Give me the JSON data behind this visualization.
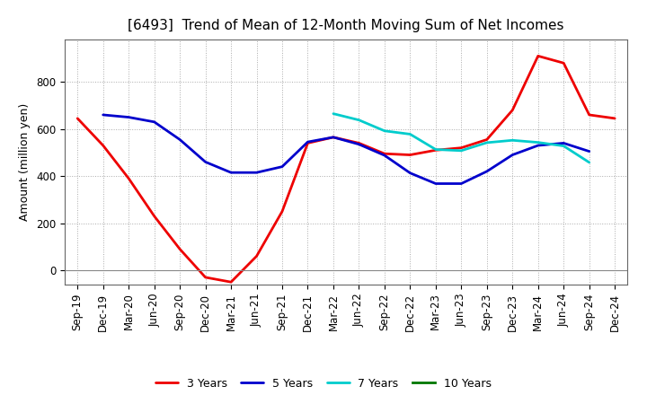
{
  "title": "[6493]  Trend of Mean of 12-Month Moving Sum of Net Incomes",
  "ylabel": "Amount (million yen)",
  "xlabels": [
    "Sep-19",
    "Dec-19",
    "Mar-20",
    "Jun-20",
    "Sep-20",
    "Dec-20",
    "Mar-21",
    "Jun-21",
    "Sep-21",
    "Dec-21",
    "Mar-22",
    "Jun-22",
    "Sep-22",
    "Dec-22",
    "Mar-23",
    "Jun-23",
    "Sep-23",
    "Dec-23",
    "Mar-24",
    "Jun-24",
    "Sep-24",
    "Dec-24"
  ],
  "ylim": [
    -60,
    980
  ],
  "yticks": [
    0,
    200,
    400,
    600,
    800
  ],
  "series": {
    "3 Years": {
      "color": "#EE0000",
      "linewidth": 2.0,
      "values": [
        645,
        530,
        390,
        230,
        90,
        -30,
        -50,
        60,
        250,
        540,
        565,
        540,
        495,
        490,
        510,
        520,
        555,
        680,
        910,
        880,
        660,
        645
      ]
    },
    "5 Years": {
      "color": "#0000CC",
      "linewidth": 2.0,
      "values": [
        null,
        660,
        650,
        630,
        555,
        460,
        415,
        415,
        440,
        545,
        565,
        535,
        488,
        413,
        368,
        368,
        420,
        490,
        530,
        540,
        505,
        null
      ]
    },
    "7 Years": {
      "color": "#00CCCC",
      "linewidth": 2.0,
      "values": [
        null,
        null,
        null,
        null,
        null,
        null,
        null,
        null,
        null,
        null,
        665,
        638,
        592,
        578,
        513,
        508,
        542,
        552,
        543,
        528,
        458,
        null
      ]
    },
    "10 Years": {
      "color": "#007700",
      "linewidth": 2.0,
      "values": [
        null,
        null,
        null,
        null,
        null,
        null,
        null,
        null,
        null,
        null,
        null,
        null,
        null,
        null,
        null,
        null,
        null,
        null,
        null,
        null,
        null,
        null
      ]
    }
  },
  "background_color": "#FFFFFF",
  "plot_bg_color": "#FFFFFF",
  "grid_color": "#AAAAAA",
  "title_fontsize": 11,
  "axis_label_fontsize": 9,
  "tick_fontsize": 8.5,
  "legend_fontsize": 9
}
